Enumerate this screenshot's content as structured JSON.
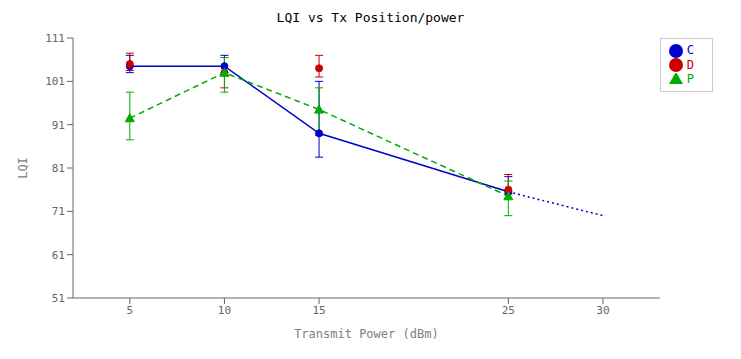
{
  "chart_data": {
    "type": "line",
    "title": "LQI vs Tx Position/power",
    "xlabel": "Transmit Power (dBm)",
    "ylabel": "LQI",
    "x": [
      5,
      10,
      15,
      25
    ],
    "series": [
      {
        "name": "C",
        "color": "#0000cc",
        "line_style": "solid",
        "marker": "circle",
        "values": [
          104.5,
          104.5,
          89.0,
          75.5
        ],
        "error_low": [
          103.0,
          103.0,
          83.5,
          75.0
        ],
        "error_high": [
          107.0,
          107.0,
          101.0,
          79.0
        ]
      },
      {
        "name": "D",
        "color": "#cc0000",
        "line_style": "none",
        "marker": "circle",
        "values": [
          105.0,
          103.0,
          104.0,
          76.0
        ],
        "error_low": [
          103.5,
          99.5,
          102.0,
          75.5
        ],
        "error_high": [
          107.5,
          106.5,
          107.0,
          79.5
        ]
      },
      {
        "name": "P",
        "color": "#00aa00",
        "line_style": "dashed",
        "marker": "triangle",
        "values": [
          92.5,
          103.0,
          94.5,
          74.5
        ],
        "error_low": [
          87.5,
          98.5,
          88.5,
          70.0
        ],
        "error_high": [
          98.5,
          106.5,
          99.5,
          78.0
        ]
      }
    ],
    "continuation": {
      "x": [
        25,
        30
      ],
      "values": [
        75.5,
        70.0
      ],
      "color": "#0000cc",
      "line_style": "dotted"
    },
    "xlim": [
      2,
      33
    ],
    "ylim": [
      51,
      111
    ],
    "xticks": [
      5,
      10,
      15,
      25,
      30
    ],
    "yticks": [
      51,
      61,
      71,
      81,
      91,
      101,
      111
    ],
    "grid": false,
    "legend": "right"
  }
}
